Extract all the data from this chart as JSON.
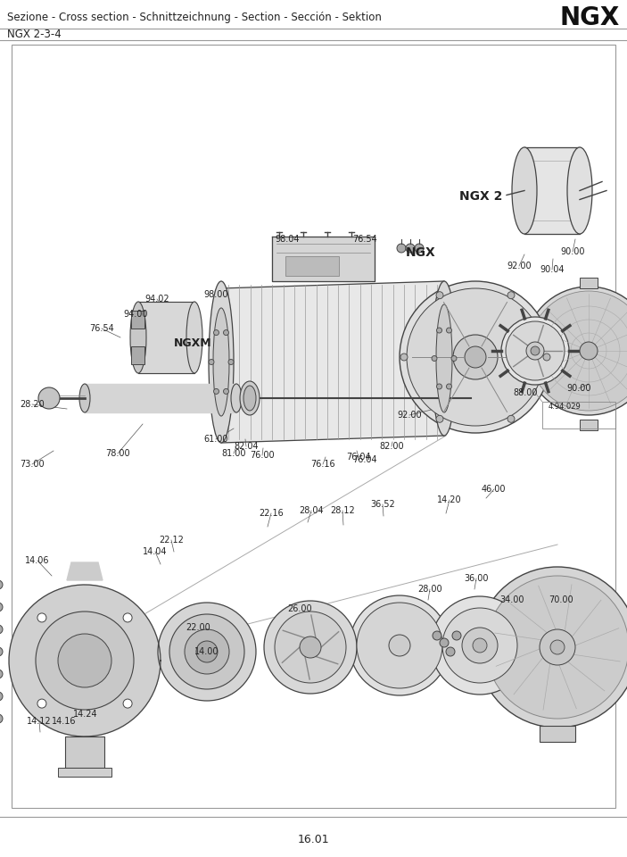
{
  "title_line1": "Sezione - Cross section - Schnittzeichnung - Section - Sección - Sektion",
  "title_brand": "NGX",
  "title_line2": "NGX 2-3-4",
  "footer_text": "16.01",
  "bg_color": "#ffffff",
  "text_color": "#222222",
  "drawing_color": "#444444",
  "light_gray": "#cccccc",
  "mid_gray": "#aaaaaa",
  "dark_gray": "#555555"
}
